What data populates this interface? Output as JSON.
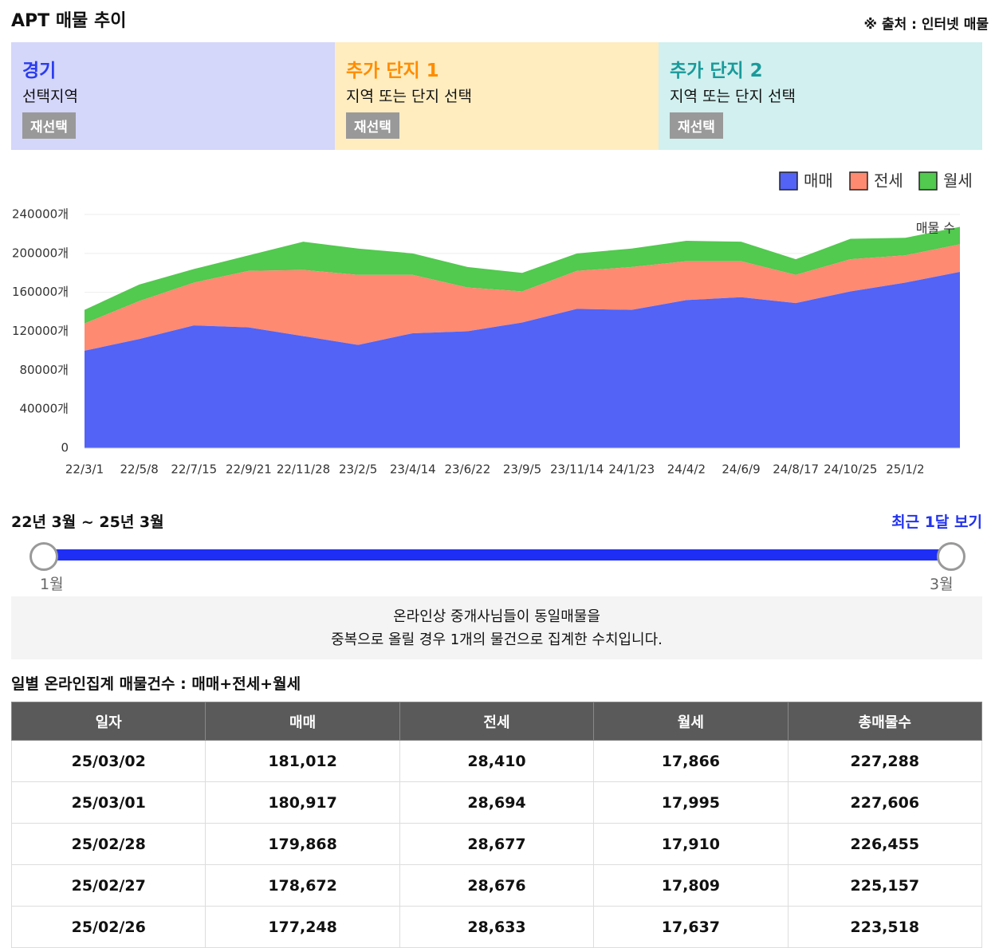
{
  "header": {
    "title": "APT 매물 추이",
    "source": "※ 출처 : 인터넷 매물"
  },
  "regions": [
    {
      "name": "경기",
      "subtitle": "선택지역",
      "button": "재선택"
    },
    {
      "name": "추가 단지 1",
      "subtitle": "지역 또는 단지 선택",
      "button": "재선택"
    },
    {
      "name": "추가 단지 2",
      "subtitle": "지역 또는 단지 선택",
      "button": "재선택"
    }
  ],
  "chart_data": {
    "type": "area",
    "stacked": true,
    "x": [
      "22/3/1",
      "22/5/8",
      "22/7/15",
      "22/9/21",
      "22/11/28",
      "23/2/5",
      "23/4/14",
      "23/6/22",
      "23/9/5",
      "23/11/14",
      "24/1/23",
      "24/4/2",
      "24/6/9",
      "24/8/17",
      "24/10/25",
      "25/1/2",
      null
    ],
    "series": [
      {
        "name": "매매",
        "color": "#5263f5",
        "values": [
          100000,
          112000,
          126000,
          124000,
          115000,
          106000,
          118000,
          120000,
          129000,
          143000,
          142000,
          152000,
          155000,
          149000,
          161000,
          170000,
          181012
        ]
      },
      {
        "name": "전세",
        "color": "#ff8a72",
        "values": [
          28000,
          39000,
          44000,
          58000,
          68000,
          72000,
          60000,
          45000,
          32000,
          39000,
          44000,
          40000,
          37000,
          29000,
          33000,
          28000,
          28410
        ]
      },
      {
        "name": "월세",
        "color": "#52c94f",
        "values": [
          14000,
          17000,
          14000,
          16000,
          29000,
          27000,
          22000,
          21000,
          19000,
          18000,
          19000,
          21000,
          20000,
          16000,
          21000,
          18000,
          17866
        ]
      }
    ],
    "ylim": [
      0,
      240000
    ],
    "yticks": [
      0,
      {
        "value": 40000,
        "label": "40000개"
      },
      {
        "value": 80000,
        "label": "80000개"
      },
      {
        "value": 120000,
        "label": "120000개"
      },
      {
        "value": 160000,
        "label": "160000개"
      },
      {
        "value": 200000,
        "label": "200000개"
      },
      {
        "value": 240000,
        "label": "240000개"
      }
    ],
    "grid": true,
    "legend": "top-right",
    "annotation": "매물 수"
  },
  "range": {
    "label": "22년 3월 ~ 25년 3월",
    "link": "최근 1달 보기",
    "start": "1월",
    "end": "3월"
  },
  "notice": [
    "온라인상 중개사님들이 동일매물을",
    "중복으로 올릴 경우 1개의 물건으로 집계한 수치입니다."
  ],
  "table": {
    "caption": "일별 온라인집계 매물건수 : 매매+전세+월세",
    "columns": [
      "일자",
      "매매",
      "전세",
      "월세",
      "총매물수"
    ],
    "rows": [
      [
        "25/03/02",
        "181,012",
        "28,410",
        "17,866",
        "227,288"
      ],
      [
        "25/03/01",
        "180,917",
        "28,694",
        "17,995",
        "227,606"
      ],
      [
        "25/02/28",
        "179,868",
        "28,677",
        "17,910",
        "226,455"
      ],
      [
        "25/02/27",
        "178,672",
        "28,676",
        "17,809",
        "225,157"
      ],
      [
        "25/02/26",
        "177,248",
        "28,633",
        "17,637",
        "223,518"
      ]
    ]
  }
}
